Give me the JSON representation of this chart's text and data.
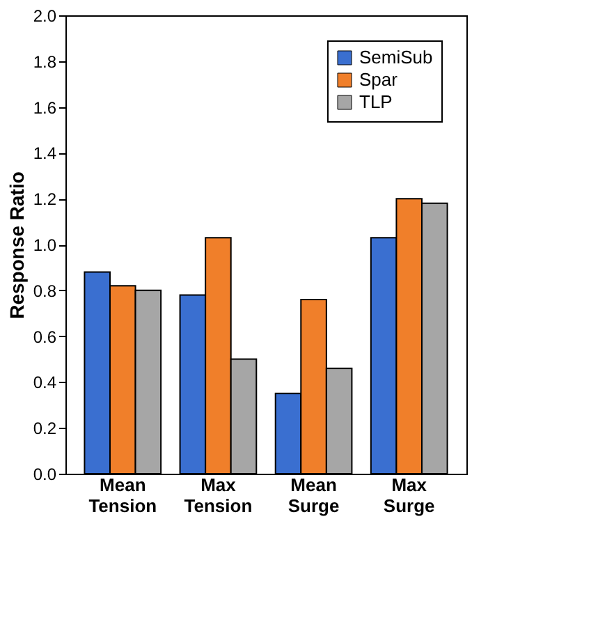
{
  "chart_data": {
    "type": "bar",
    "ylabel": "Response Ratio",
    "categories": [
      "Mean Tension",
      "Max Tension",
      "Mean Surge",
      "Max Surge"
    ],
    "series": [
      {
        "name": "SemiSub",
        "color": "#3a6fd0",
        "values": [
          0.88,
          0.78,
          0.35,
          1.03
        ]
      },
      {
        "name": "Spar",
        "color": "#f07f2a",
        "values": [
          0.82,
          1.03,
          0.76,
          1.2
        ]
      },
      {
        "name": "TLP",
        "color": "#a6a6a6",
        "values": [
          0.8,
          0.5,
          0.46,
          1.18
        ]
      }
    ],
    "ylim": [
      0,
      2
    ],
    "yticks": [
      {
        "value": 0,
        "label": "0.0"
      },
      {
        "value": 0.2,
        "label": "0.2"
      },
      {
        "value": 0.4,
        "label": "0.4"
      },
      {
        "value": 0.6,
        "label": "0.6"
      },
      {
        "value": 0.8,
        "label": "0.8"
      },
      {
        "value": 1,
        "label": "1.0"
      },
      {
        "value": 1.2,
        "label": "1.2"
      },
      {
        "value": 1.4,
        "label": "1.4"
      },
      {
        "value": 1.6,
        "label": "1.6"
      },
      {
        "value": 1.8,
        "label": "1.8"
      },
      {
        "value": 2,
        "label": "2.0"
      }
    ],
    "grid": false,
    "legend": "top right"
  }
}
